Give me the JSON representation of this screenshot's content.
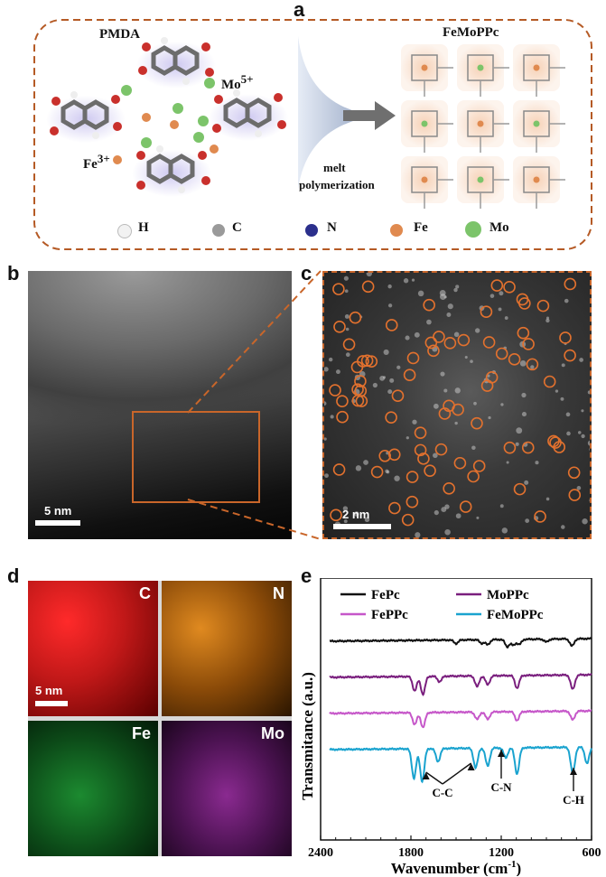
{
  "panels": {
    "a": "a",
    "b": "b",
    "c": "c",
    "d": "d",
    "e": "e"
  },
  "panel_a": {
    "monomer_label": "PMDA",
    "mo_ion": "Mo",
    "mo_charge": "5+",
    "fe_ion": "Fe",
    "fe_charge": "3+",
    "process_line1": "melt",
    "process_line2": "polymerization",
    "product_label": "FeMoPPc",
    "legend": [
      {
        "symbol": "H",
        "color": "#f2f2f2"
      },
      {
        "symbol": "C",
        "color": "#9a9a9a"
      },
      {
        "symbol": "N",
        "color": "#2b2f8c"
      },
      {
        "symbol": "Fe",
        "color": "#e08a4f"
      },
      {
        "symbol": "Mo",
        "color": "#7cc46a"
      }
    ]
  },
  "panel_b": {
    "scale": "5 nm"
  },
  "panel_c": {
    "scale": "2 nm"
  },
  "panel_d": {
    "scale": "5 nm",
    "maps": [
      {
        "element": "C",
        "color": "#e0202a"
      },
      {
        "element": "N",
        "color": "#e07a10"
      },
      {
        "element": "Fe",
        "color": "#20b040"
      },
      {
        "element": "Mo",
        "color": "#b030c0"
      }
    ]
  },
  "chart_data": {
    "type": "line",
    "xlabel": "Wavenumber (cm",
    "xlabel_superscript": "-1",
    "xlabel_close": ")",
    "ylabel": "Transmitance (a.u.)",
    "xlim": [
      2400,
      600
    ],
    "x_ticks": [
      "2400",
      "1800",
      "1200",
      "600"
    ],
    "series": [
      {
        "name": "FePc",
        "color": "#111111",
        "offset": 0.0,
        "depth": 0.22,
        "peaks": [
          [
            1500,
            0.5
          ],
          [
            1330,
            0.5
          ],
          [
            1290,
            0.7
          ],
          [
            1160,
            1.0
          ],
          [
            1120,
            0.8
          ],
          [
            1080,
            0.7
          ],
          [
            900,
            0.4
          ],
          [
            730,
            1.0
          ]
        ]
      },
      {
        "name": "MoPPc",
        "color": "#7a1f7e",
        "offset": 1.0,
        "depth": 0.55,
        "peaks": [
          [
            1775,
            0.8
          ],
          [
            1720,
            1.0
          ],
          [
            1610,
            0.3
          ],
          [
            1360,
            0.6
          ],
          [
            1290,
            0.5
          ],
          [
            1095,
            0.7
          ],
          [
            725,
            0.8
          ]
        ]
      },
      {
        "name": "FePPc",
        "color": "#c657c9",
        "offset": 2.0,
        "depth": 0.45,
        "peaks": [
          [
            1775,
            0.8
          ],
          [
            1720,
            1.0
          ],
          [
            1360,
            0.5
          ],
          [
            1290,
            0.5
          ],
          [
            1095,
            0.6
          ],
          [
            725,
            0.6
          ]
        ]
      },
      {
        "name": "FeMoPPc",
        "color": "#1aa3cf",
        "offset": 3.0,
        "depth": 1.0,
        "peaks": [
          [
            1780,
            0.9
          ],
          [
            1725,
            1.0
          ],
          [
            1620,
            0.4
          ],
          [
            1370,
            0.6
          ],
          [
            1290,
            0.55
          ],
          [
            1170,
            0.3
          ],
          [
            1095,
            0.8
          ],
          [
            725,
            0.8
          ],
          [
            630,
            0.5
          ]
        ]
      }
    ],
    "annotations": [
      "C-C",
      "C-N",
      "C-H"
    ]
  }
}
